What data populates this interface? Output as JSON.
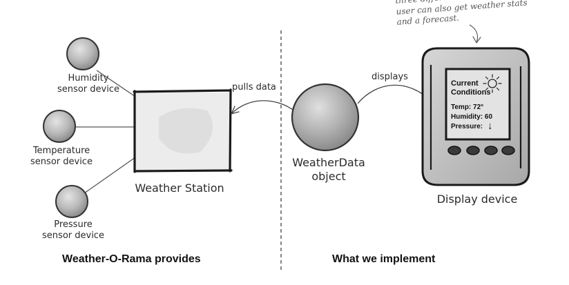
{
  "note": {
    "line1": "three different displays.",
    "line2": "user can also get weather stats",
    "line3": "and a forecast."
  },
  "sensors": [
    {
      "line1": "Humidity",
      "line2": "sensor device"
    },
    {
      "line1": "Temperature",
      "line2": "sensor device"
    },
    {
      "line1": "Pressure",
      "line2": "sensor device"
    }
  ],
  "station_label": "Weather Station",
  "pulls_label": "pulls data",
  "displays_label": "displays",
  "weatherdata": {
    "line1": "WeatherData",
    "line2": "object"
  },
  "display_device_label": "Display device",
  "screen": {
    "title_line1": "Current",
    "title_line2": "Conditions",
    "temp": "Temp: 72°",
    "humidity": "Humidity: 60",
    "pressure": "Pressure:",
    "pressure_arrow": "↓"
  },
  "sections": {
    "left": "Weather-O-Rama provides",
    "right": "What we implement"
  }
}
